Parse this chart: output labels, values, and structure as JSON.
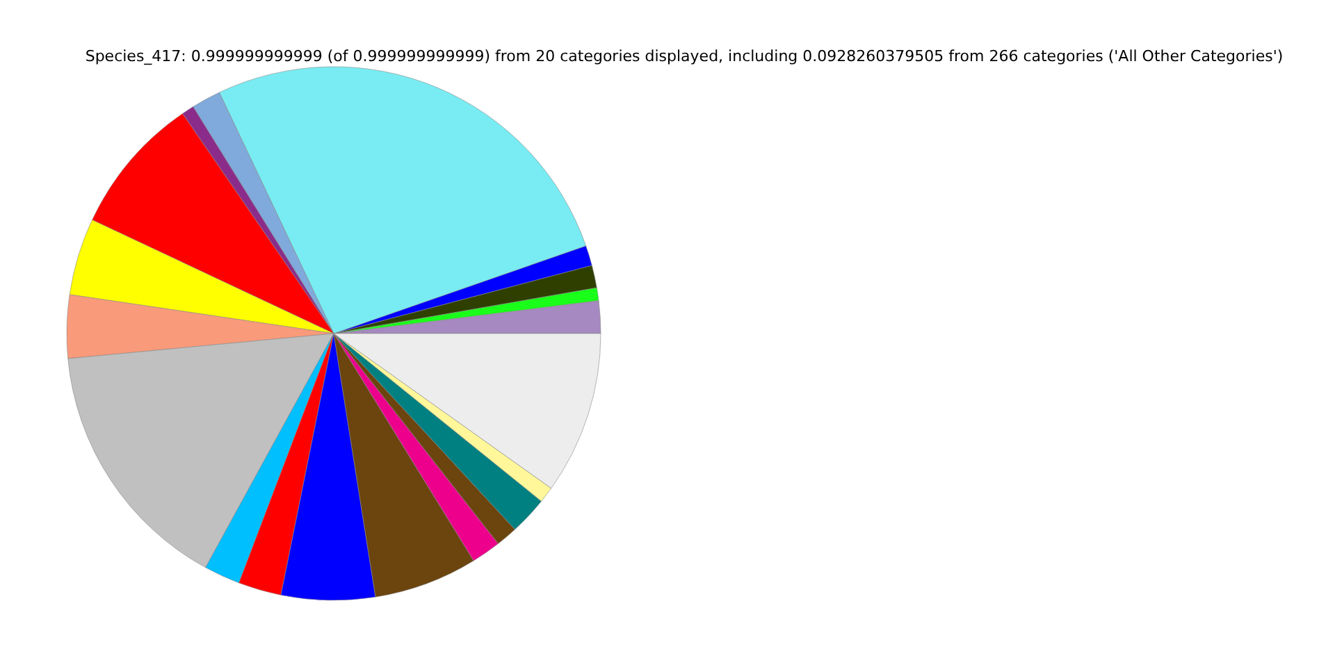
{
  "chart_data": {
    "type": "pie",
    "title": "Species_417: 0.999999999999 (of 0.999999999999) from 20 categories displayed, including 0.0928260379505 from 266 categories ('All Other Categories')",
    "categories": [
      null,
      null,
      null,
      null,
      null,
      null,
      null,
      null,
      null,
      null,
      null,
      null,
      null,
      null,
      null,
      null,
      null,
      null,
      null,
      null
    ],
    "values": [
      1.97,
      0.78,
      1.36,
      1.22,
      26.72,
      1.78,
      0.75,
      8.42,
      4.67,
      3.83,
      15.53,
      2.19,
      2.61,
      5.67,
      6.28,
      1.78,
      1.31,
      2.31,
      0.97,
      9.85
    ],
    "colors": [
      "#a689c0",
      "#1aff1a",
      "#2f3f00",
      "#0000ff",
      "#78ecf2",
      "#7faadb",
      "#8b2c8b",
      "#ff0000",
      "#ffff00",
      "#f99a7a",
      "#c0c0c0",
      "#00bfff",
      "#ff0000",
      "#0000ff",
      "#6b440e",
      "#ec008c",
      "#6b440e",
      "#008080",
      "#fff799",
      "#ededed"
    ]
  }
}
